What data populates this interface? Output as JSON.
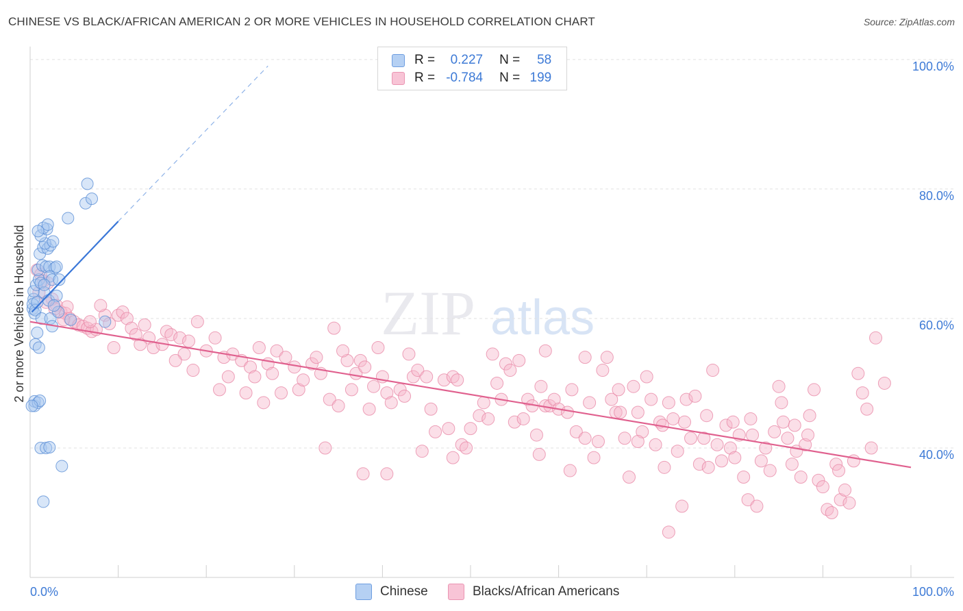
{
  "title": "CHINESE VS BLACK/AFRICAN AMERICAN 2 OR MORE VEHICLES IN HOUSEHOLD CORRELATION CHART",
  "source": "Source: ZipAtlas.com",
  "watermark": {
    "zip": "ZIP",
    "atlas": "atlas"
  },
  "colors": {
    "chinese_fill": "#a9c8f0",
    "chinese_stroke": "#5b8fd6",
    "chinese_line": "#3a77d8",
    "black_fill": "#f6b9cd",
    "black_stroke": "#e88aa8",
    "black_line": "#e0608e",
    "tick": "#3d7ad6"
  },
  "legend": {
    "rows": [
      {
        "r_label": "R =",
        "r_value": "0.227",
        "n_label": "N =",
        "n_value": "58"
      },
      {
        "r_label": "R =",
        "r_value": "-0.784",
        "n_label": "N =",
        "n_value": "199"
      }
    ]
  },
  "bottom_legend": {
    "series1": "Chinese",
    "series2": "Blacks/African Americans"
  },
  "chart_data": {
    "type": "scatter",
    "title": "CHINESE VS BLACK/AFRICAN AMERICAN 2 OR MORE VEHICLES IN HOUSEHOLD CORRELATION CHART",
    "xlabel": "",
    "ylabel": "2 or more Vehicles in Household",
    "xlim": [
      0,
      100
    ],
    "ylim": [
      20,
      102
    ],
    "x_ticks": [
      "0.0%",
      "100.0%"
    ],
    "y_ticks": [
      {
        "value": 100,
        "label": "100.0%"
      },
      {
        "value": 80,
        "label": "80.0%"
      },
      {
        "value": 60,
        "label": "60.0%"
      },
      {
        "value": 40,
        "label": "40.0%"
      }
    ],
    "grid": "horizontal dashed",
    "legend_position": "top-center",
    "series": [
      {
        "name": "Chinese",
        "r": 0.227,
        "n": 58,
        "trend": {
          "x0": 0.2,
          "y0": 61.0,
          "x1": 10.0,
          "y1": 75.0,
          "dash_x1": 27.0,
          "dash_y1": 99.0
        },
        "points": [
          [
            0.3,
            61.5
          ],
          [
            0.4,
            63.0
          ],
          [
            0.3,
            62.2
          ],
          [
            0.5,
            60.8
          ],
          [
            0.6,
            61.3
          ],
          [
            0.8,
            62.5
          ],
          [
            0.4,
            64.2
          ],
          [
            0.7,
            65.2
          ],
          [
            1.0,
            66.0
          ],
          [
            1.2,
            65.5
          ],
          [
            0.9,
            67.5
          ],
          [
            1.4,
            68.2
          ],
          [
            1.8,
            68.0
          ],
          [
            2.2,
            68.0
          ],
          [
            2.8,
            67.8
          ],
          [
            1.1,
            70.0
          ],
          [
            1.5,
            71.0
          ],
          [
            2.0,
            70.8
          ],
          [
            2.3,
            71.3
          ],
          [
            1.7,
            71.6
          ],
          [
            2.6,
            71.9
          ],
          [
            1.2,
            72.8
          ],
          [
            1.9,
            73.8
          ],
          [
            1.5,
            74.0
          ],
          [
            2.0,
            74.5
          ],
          [
            0.9,
            73.5
          ],
          [
            2.2,
            66.5
          ],
          [
            2.5,
            66.0
          ],
          [
            3.3,
            66.0
          ],
          [
            1.6,
            64.0
          ],
          [
            2.1,
            62.8
          ],
          [
            3.0,
            63.5
          ],
          [
            0.8,
            57.8
          ],
          [
            0.6,
            56.0
          ],
          [
            1.3,
            60.0
          ],
          [
            2.3,
            60.0
          ],
          [
            2.5,
            58.8
          ],
          [
            4.6,
            59.8
          ],
          [
            8.5,
            59.5
          ],
          [
            3.2,
            61.0
          ],
          [
            0.5,
            46.5
          ],
          [
            0.5,
            47.2
          ],
          [
            0.9,
            47.0
          ],
          [
            1.1,
            47.3
          ],
          [
            1.2,
            40.0
          ],
          [
            1.8,
            40.0
          ],
          [
            2.2,
            40.1
          ],
          [
            3.6,
            37.2
          ],
          [
            1.5,
            31.7
          ],
          [
            4.3,
            75.5
          ],
          [
            6.3,
            77.8
          ],
          [
            6.5,
            80.8
          ],
          [
            7.0,
            78.5
          ],
          [
            0.2,
            46.5
          ],
          [
            1.0,
            55.5
          ],
          [
            1.6,
            65.2
          ],
          [
            3.0,
            68.0
          ],
          [
            2.7,
            62.0
          ]
        ]
      },
      {
        "name": "Blacks/African Americans",
        "r": -0.784,
        "n": 199,
        "trend": {
          "x0": 0.0,
          "y0": 59.5,
          "x1": 100.0,
          "y1": 37.0
        },
        "points": [
          [
            0.8,
            67.5
          ],
          [
            1.2,
            66.8
          ],
          [
            1.5,
            65.8
          ],
          [
            2.0,
            65.5
          ],
          [
            1.0,
            64.0
          ],
          [
            2.5,
            63.0
          ],
          [
            1.8,
            62.5
          ],
          [
            3.0,
            62.0
          ],
          [
            3.5,
            61.0
          ],
          [
            4.0,
            60.8
          ],
          [
            4.5,
            60.0
          ],
          [
            5.0,
            59.5
          ],
          [
            5.5,
            59.0
          ],
          [
            6.0,
            58.8
          ],
          [
            6.5,
            58.5
          ],
          [
            7.0,
            58.0
          ],
          [
            7.5,
            58.3
          ],
          [
            8.5,
            60.5
          ],
          [
            9.0,
            59.2
          ],
          [
            10.0,
            60.5
          ],
          [
            10.5,
            61.0
          ],
          [
            11.0,
            60.0
          ],
          [
            11.5,
            58.5
          ],
          [
            12.0,
            57.5
          ],
          [
            13.0,
            59.0
          ],
          [
            13.5,
            57.0
          ],
          [
            14.0,
            55.5
          ],
          [
            15.0,
            56.0
          ],
          [
            15.5,
            58.0
          ],
          [
            16.0,
            57.5
          ],
          [
            17.0,
            57.0
          ],
          [
            17.5,
            54.5
          ],
          [
            18.0,
            56.5
          ],
          [
            19.0,
            59.5
          ],
          [
            20.0,
            55.0
          ],
          [
            21.0,
            57.0
          ],
          [
            22.0,
            54.0
          ],
          [
            22.5,
            51.0
          ],
          [
            23.0,
            54.5
          ],
          [
            24.0,
            53.5
          ],
          [
            24.5,
            48.5
          ],
          [
            25.0,
            52.5
          ],
          [
            25.5,
            51.0
          ],
          [
            26.0,
            55.5
          ],
          [
            27.0,
            53.0
          ],
          [
            27.5,
            51.5
          ],
          [
            28.0,
            55.0
          ],
          [
            28.5,
            48.5
          ],
          [
            29.0,
            54.0
          ],
          [
            30.0,
            52.5
          ],
          [
            30.5,
            49.0
          ],
          [
            31.0,
            50.5
          ],
          [
            32.0,
            53.0
          ],
          [
            32.5,
            54.0
          ],
          [
            33.0,
            51.5
          ],
          [
            34.0,
            47.5
          ],
          [
            34.5,
            58.5
          ],
          [
            35.0,
            46.5
          ],
          [
            36.0,
            53.5
          ],
          [
            36.5,
            49.0
          ],
          [
            37.0,
            51.5
          ],
          [
            37.5,
            53.5
          ],
          [
            38.0,
            52.5
          ],
          [
            38.5,
            46.0
          ],
          [
            39.0,
            49.5
          ],
          [
            39.5,
            55.5
          ],
          [
            40.0,
            51.0
          ],
          [
            40.5,
            48.5
          ],
          [
            41.0,
            47.0
          ],
          [
            42.0,
            49.0
          ],
          [
            42.5,
            48.0
          ],
          [
            43.0,
            54.5
          ],
          [
            43.5,
            51.0
          ],
          [
            44.0,
            52.0
          ],
          [
            45.0,
            51.0
          ],
          [
            45.5,
            46.0
          ],
          [
            46.0,
            42.5
          ],
          [
            47.0,
            50.5
          ],
          [
            47.5,
            43.0
          ],
          [
            48.0,
            51.0
          ],
          [
            48.5,
            50.5
          ],
          [
            49.0,
            40.5
          ],
          [
            49.5,
            40.0
          ],
          [
            50.0,
            43.0
          ],
          [
            51.0,
            45.0
          ],
          [
            51.5,
            47.0
          ],
          [
            52.0,
            44.5
          ],
          [
            52.5,
            54.5
          ],
          [
            53.0,
            50.0
          ],
          [
            53.5,
            47.5
          ],
          [
            54.0,
            53.0
          ],
          [
            54.5,
            52.0
          ],
          [
            55.0,
            44.0
          ],
          [
            55.5,
            53.5
          ],
          [
            56.0,
            44.5
          ],
          [
            56.5,
            47.5
          ],
          [
            57.0,
            46.5
          ],
          [
            57.5,
            42.0
          ],
          [
            58.0,
            49.5
          ],
          [
            58.5,
            46.5
          ],
          [
            59.0,
            46.5
          ],
          [
            59.5,
            47.5
          ],
          [
            60.0,
            46.0
          ],
          [
            61.0,
            45.5
          ],
          [
            61.5,
            49.0
          ],
          [
            62.0,
            42.5
          ],
          [
            63.0,
            41.5
          ],
          [
            63.5,
            47.0
          ],
          [
            64.0,
            38.5
          ],
          [
            64.5,
            41.0
          ],
          [
            65.0,
            52.0
          ],
          [
            65.5,
            54.0
          ],
          [
            66.0,
            47.5
          ],
          [
            66.5,
            45.5
          ],
          [
            67.0,
            45.5
          ],
          [
            67.5,
            41.5
          ],
          [
            68.0,
            35.5
          ],
          [
            68.5,
            49.5
          ],
          [
            69.0,
            45.5
          ],
          [
            69.5,
            42.5
          ],
          [
            70.0,
            51.0
          ],
          [
            70.5,
            47.5
          ],
          [
            71.0,
            40.5
          ],
          [
            71.5,
            44.0
          ],
          [
            72.0,
            37.0
          ],
          [
            72.5,
            47.0
          ],
          [
            73.0,
            44.5
          ],
          [
            73.5,
            39.5
          ],
          [
            74.0,
            31.0
          ],
          [
            74.5,
            47.5
          ],
          [
            75.0,
            41.5
          ],
          [
            75.5,
            48.0
          ],
          [
            76.0,
            37.5
          ],
          [
            76.5,
            41.5
          ],
          [
            77.0,
            37.0
          ],
          [
            77.5,
            52.0
          ],
          [
            78.0,
            40.5
          ],
          [
            78.5,
            38.0
          ],
          [
            79.0,
            43.5
          ],
          [
            79.5,
            40.0
          ],
          [
            80.0,
            38.5
          ],
          [
            80.5,
            42.0
          ],
          [
            81.0,
            35.5
          ],
          [
            81.5,
            32.0
          ],
          [
            82.0,
            42.0
          ],
          [
            82.5,
            31.0
          ],
          [
            83.0,
            38.0
          ],
          [
            83.5,
            40.0
          ],
          [
            84.0,
            36.5
          ],
          [
            84.5,
            42.5
          ],
          [
            85.0,
            49.5
          ],
          [
            85.5,
            44.0
          ],
          [
            86.0,
            41.5
          ],
          [
            86.5,
            37.5
          ],
          [
            87.0,
            39.5
          ],
          [
            87.5,
            35.5
          ],
          [
            88.0,
            40.5
          ],
          [
            88.5,
            45.0
          ],
          [
            89.0,
            49.0
          ],
          [
            89.5,
            35.0
          ],
          [
            90.0,
            34.0
          ],
          [
            90.5,
            30.5
          ],
          [
            91.0,
            30.0
          ],
          [
            91.5,
            37.5
          ],
          [
            92.0,
            32.0
          ],
          [
            92.5,
            33.5
          ],
          [
            93.0,
            31.5
          ],
          [
            93.5,
            38.0
          ],
          [
            94.0,
            51.5
          ],
          [
            94.5,
            48.5
          ],
          [
            95.0,
            46.0
          ],
          [
            95.5,
            40.0
          ],
          [
            96.0,
            57.0
          ],
          [
            97.0,
            50.0
          ],
          [
            72.5,
            27.0
          ],
          [
            58.5,
            55.0
          ],
          [
            63.0,
            54.0
          ],
          [
            69.0,
            41.0
          ],
          [
            48.0,
            38.5
          ],
          [
            44.5,
            39.5
          ],
          [
            40.5,
            36.0
          ],
          [
            35.5,
            55.0
          ],
          [
            33.5,
            40.0
          ],
          [
            26.5,
            47.0
          ],
          [
            21.5,
            49.0
          ],
          [
            18.5,
            52.0
          ],
          [
            16.5,
            53.5
          ],
          [
            12.5,
            56.0
          ],
          [
            9.5,
            55.5
          ],
          [
            8.0,
            62.0
          ],
          [
            6.8,
            59.5
          ],
          [
            4.2,
            61.8
          ],
          [
            3.8,
            59.8
          ],
          [
            2.8,
            61.5
          ],
          [
            37.8,
            36.0
          ],
          [
            57.8,
            39.0
          ],
          [
            61.3,
            36.5
          ],
          [
            66.8,
            49.0
          ],
          [
            71.8,
            43.5
          ],
          [
            76.8,
            45.0
          ],
          [
            81.8,
            44.5
          ],
          [
            86.8,
            43.5
          ],
          [
            91.8,
            36.5
          ],
          [
            88.3,
            42.0
          ],
          [
            79.8,
            44.0
          ],
          [
            74.3,
            44.0
          ],
          [
            85.3,
            47.0
          ]
        ]
      }
    ]
  }
}
